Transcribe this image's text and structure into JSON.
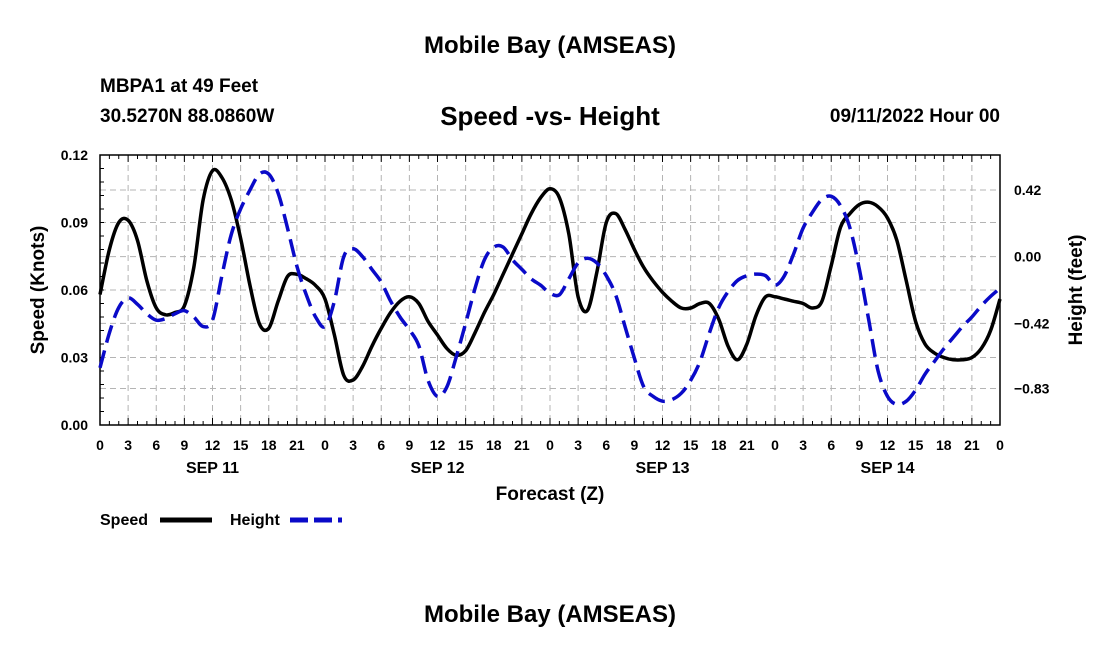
{
  "header": {
    "title": "Mobile Bay (AMSEAS)",
    "station": "MBPA1 at 49 Feet",
    "coords": "30.5270N  88.0860W",
    "subtitle": "Speed -vs- Height",
    "datetime": "09/11/2022 Hour 00"
  },
  "footer": {
    "title": "Mobile Bay (AMSEAS)"
  },
  "colors": {
    "speed": "#000000",
    "height": "#0a0ac8",
    "grid": "#b4b4b4"
  },
  "chart_data": {
    "type": "line",
    "xlabel": "Forecast (Z)",
    "ylabel": "Speed (Knots)",
    "y2label": "Height (feet)",
    "xlim": [
      0,
      96
    ],
    "ylim": [
      0,
      0.12
    ],
    "y2lim": [
      -1.06,
      0.64
    ],
    "x_tick_labels": [
      "0",
      "3",
      "6",
      "9",
      "12",
      "15",
      "18",
      "21",
      "0",
      "3",
      "6",
      "9",
      "12",
      "15",
      "18",
      "21",
      "0",
      "3",
      "6",
      "9",
      "12",
      "15",
      "18",
      "21",
      "0",
      "3",
      "6",
      "9",
      "12",
      "15",
      "18",
      "21",
      "0"
    ],
    "date_labels": [
      {
        "x": 12,
        "label": "SEP 11"
      },
      {
        "x": 36,
        "label": "SEP 12"
      },
      {
        "x": 60,
        "label": "SEP 13"
      },
      {
        "x": 84,
        "label": "SEP 14"
      }
    ],
    "y_ticks": [
      "0.00",
      "0.03",
      "0.06",
      "0.09",
      "0.12"
    ],
    "y_tick_values": [
      0,
      0.03,
      0.06,
      0.09,
      0.12
    ],
    "y2_ticks": [
      "−0.83",
      "−0.42",
      "0.00",
      "0.42"
    ],
    "y2_tick_values": [
      -0.83,
      -0.42,
      0.0,
      0.42
    ],
    "legend": [
      {
        "name": "Speed"
      },
      {
        "name": "Height"
      }
    ],
    "series": [
      {
        "name": "Speed",
        "axis": "left",
        "style": "solid",
        "points": [
          [
            0,
            0.058
          ],
          [
            1,
            0.078
          ],
          [
            2,
            0.09
          ],
          [
            3,
            0.091
          ],
          [
            4,
            0.082
          ],
          [
            5,
            0.064
          ],
          [
            6,
            0.052
          ],
          [
            7,
            0.049
          ],
          [
            8,
            0.05
          ],
          [
            9,
            0.053
          ],
          [
            10,
            0.07
          ],
          [
            11,
            0.1
          ],
          [
            12,
            0.113
          ],
          [
            13,
            0.11
          ],
          [
            14,
            0.1
          ],
          [
            15,
            0.083
          ],
          [
            16,
            0.062
          ],
          [
            17,
            0.045
          ],
          [
            18,
            0.043
          ],
          [
            19,
            0.055
          ],
          [
            20,
            0.066
          ],
          [
            21,
            0.067
          ],
          [
            22,
            0.065
          ],
          [
            23,
            0.062
          ],
          [
            24,
            0.056
          ],
          [
            25,
            0.04
          ],
          [
            26,
            0.022
          ],
          [
            27,
            0.02
          ],
          [
            28,
            0.026
          ],
          [
            29,
            0.035
          ],
          [
            30,
            0.043
          ],
          [
            31,
            0.05
          ],
          [
            32,
            0.055
          ],
          [
            33,
            0.057
          ],
          [
            34,
            0.054
          ],
          [
            35,
            0.046
          ],
          [
            36,
            0.04
          ],
          [
            37,
            0.034
          ],
          [
            38,
            0.031
          ],
          [
            39,
            0.033
          ],
          [
            40,
            0.041
          ],
          [
            41,
            0.05
          ],
          [
            42,
            0.058
          ],
          [
            43,
            0.067
          ],
          [
            44,
            0.076
          ],
          [
            45,
            0.085
          ],
          [
            46,
            0.094
          ],
          [
            47,
            0.101
          ],
          [
            48,
            0.105
          ],
          [
            49,
            0.101
          ],
          [
            50,
            0.085
          ],
          [
            51,
            0.057
          ],
          [
            52,
            0.051
          ],
          [
            53,
            0.068
          ],
          [
            54,
            0.09
          ],
          [
            55,
            0.094
          ],
          [
            56,
            0.087
          ],
          [
            57,
            0.078
          ],
          [
            58,
            0.07
          ],
          [
            59,
            0.064
          ],
          [
            60,
            0.059
          ],
          [
            61,
            0.055
          ],
          [
            62,
            0.052
          ],
          [
            63,
            0.052
          ],
          [
            64,
            0.054
          ],
          [
            65,
            0.054
          ],
          [
            66,
            0.047
          ],
          [
            67,
            0.035
          ],
          [
            68,
            0.029
          ],
          [
            69,
            0.036
          ],
          [
            70,
            0.049
          ],
          [
            71,
            0.057
          ],
          [
            72,
            0.057
          ],
          [
            73,
            0.056
          ],
          [
            74,
            0.055
          ],
          [
            75,
            0.054
          ],
          [
            76,
            0.052
          ],
          [
            77,
            0.055
          ],
          [
            78,
            0.071
          ],
          [
            79,
            0.088
          ],
          [
            80,
            0.094
          ],
          [
            81,
            0.098
          ],
          [
            82,
            0.099
          ],
          [
            83,
            0.097
          ],
          [
            84,
            0.092
          ],
          [
            85,
            0.082
          ],
          [
            86,
            0.064
          ],
          [
            87,
            0.046
          ],
          [
            88,
            0.036
          ],
          [
            89,
            0.032
          ],
          [
            90,
            0.03
          ],
          [
            91,
            0.029
          ],
          [
            92,
            0.029
          ],
          [
            93,
            0.03
          ],
          [
            94,
            0.034
          ],
          [
            95,
            0.042
          ],
          [
            96,
            0.056
          ]
        ]
      },
      {
        "name": "Height",
        "axis": "right",
        "style": "dashed",
        "points": [
          [
            0,
            -0.7
          ],
          [
            1,
            -0.48
          ],
          [
            2,
            -0.32
          ],
          [
            3,
            -0.26
          ],
          [
            4,
            -0.3
          ],
          [
            5,
            -0.36
          ],
          [
            6,
            -0.4
          ],
          [
            7,
            -0.39
          ],
          [
            8,
            -0.36
          ],
          [
            9,
            -0.34
          ],
          [
            10,
            -0.38
          ],
          [
            11,
            -0.44
          ],
          [
            12,
            -0.4
          ],
          [
            13,
            -0.12
          ],
          [
            14,
            0.14
          ],
          [
            15,
            0.3
          ],
          [
            16,
            0.42
          ],
          [
            17,
            0.52
          ],
          [
            18,
            0.52
          ],
          [
            19,
            0.4
          ],
          [
            20,
            0.18
          ],
          [
            21,
            -0.06
          ],
          [
            22,
            -0.24
          ],
          [
            23,
            -0.38
          ],
          [
            24,
            -0.44
          ],
          [
            25,
            -0.28
          ],
          [
            26,
            0.0
          ],
          [
            27,
            0.05
          ],
          [
            28,
            0.0
          ],
          [
            29,
            -0.08
          ],
          [
            30,
            -0.16
          ],
          [
            31,
            -0.28
          ],
          [
            32,
            -0.38
          ],
          [
            33,
            -0.46
          ],
          [
            34,
            -0.56
          ],
          [
            35,
            -0.78
          ],
          [
            36,
            -0.88
          ],
          [
            37,
            -0.82
          ],
          [
            38,
            -0.63
          ],
          [
            39,
            -0.42
          ],
          [
            40,
            -0.2
          ],
          [
            41,
            -0.02
          ],
          [
            42,
            0.06
          ],
          [
            43,
            0.06
          ],
          [
            44,
            -0.02
          ],
          [
            45,
            -0.08
          ],
          [
            46,
            -0.14
          ],
          [
            47,
            -0.18
          ],
          [
            48,
            -0.23
          ],
          [
            49,
            -0.24
          ],
          [
            50,
            -0.14
          ],
          [
            51,
            -0.04
          ],
          [
            52,
            -0.01
          ],
          [
            53,
            -0.04
          ],
          [
            54,
            -0.12
          ],
          [
            55,
            -0.24
          ],
          [
            56,
            -0.44
          ],
          [
            57,
            -0.64
          ],
          [
            58,
            -0.82
          ],
          [
            59,
            -0.88
          ],
          [
            60,
            -0.91
          ],
          [
            61,
            -0.9
          ],
          [
            62,
            -0.86
          ],
          [
            63,
            -0.78
          ],
          [
            64,
            -0.66
          ],
          [
            65,
            -0.48
          ],
          [
            66,
            -0.32
          ],
          [
            67,
            -0.22
          ],
          [
            68,
            -0.15
          ],
          [
            69,
            -0.12
          ],
          [
            70,
            -0.11
          ],
          [
            71,
            -0.12
          ],
          [
            72,
            -0.18
          ],
          [
            73,
            -0.12
          ],
          [
            74,
            0.02
          ],
          [
            75,
            0.18
          ],
          [
            76,
            0.28
          ],
          [
            77,
            0.36
          ],
          [
            78,
            0.38
          ],
          [
            79,
            0.32
          ],
          [
            80,
            0.18
          ],
          [
            81,
            -0.08
          ],
          [
            82,
            -0.4
          ],
          [
            83,
            -0.72
          ],
          [
            84,
            -0.88
          ],
          [
            85,
            -0.93
          ],
          [
            86,
            -0.91
          ],
          [
            87,
            -0.84
          ],
          [
            88,
            -0.74
          ],
          [
            89,
            -0.66
          ],
          [
            90,
            -0.58
          ],
          [
            91,
            -0.51
          ],
          [
            92,
            -0.44
          ],
          [
            93,
            -0.38
          ],
          [
            94,
            -0.31
          ],
          [
            95,
            -0.25
          ],
          [
            96,
            -0.2
          ]
        ]
      }
    ]
  }
}
